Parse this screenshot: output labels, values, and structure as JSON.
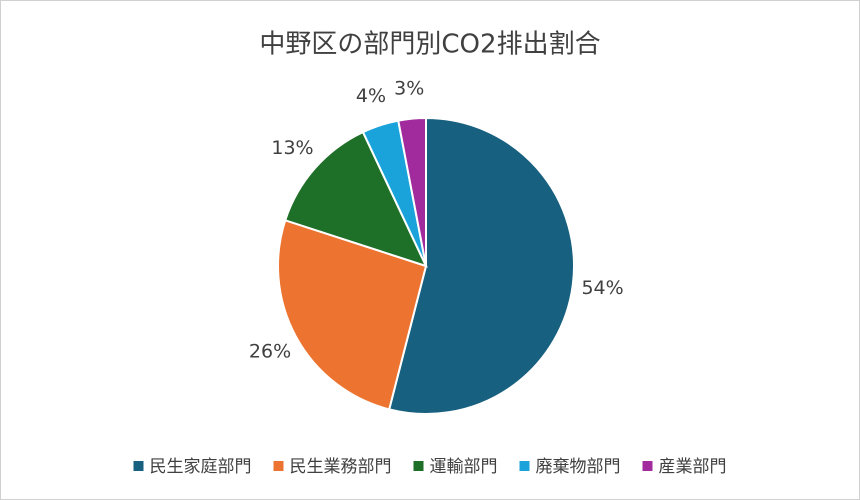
{
  "chart_data": {
    "type": "pie",
    "title": "中野区の部門別CO2排出割合",
    "categories": [
      "民生家庭部門",
      "民生業務部門",
      "運輸部門",
      "廃棄物部門",
      "産業部門"
    ],
    "values": [
      54,
      26,
      13,
      4,
      3
    ],
    "value_labels": [
      "54%",
      "26%",
      "13%",
      "4%",
      "3%"
    ],
    "colors": [
      "#17607f",
      "#ed7430",
      "#1e6f28",
      "#1aa3db",
      "#a12b9c"
    ],
    "legend": "bottom"
  }
}
